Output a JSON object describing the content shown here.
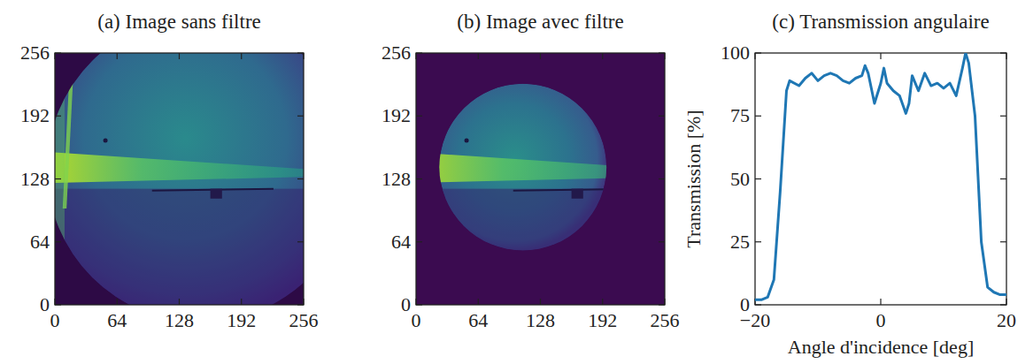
{
  "chart_data": [
    {
      "type": "image",
      "title": "(a) Image sans filtre",
      "xlim": [
        0,
        256
      ],
      "ylim": [
        0,
        256
      ],
      "xticks": [
        0,
        64,
        128,
        192,
        256
      ],
      "yticks": [
        0,
        64,
        128,
        192,
        256
      ]
    },
    {
      "type": "image",
      "title": "(b) Image avec filtre",
      "xlim": [
        0,
        256
      ],
      "ylim": [
        0,
        256
      ],
      "xticks": [
        0,
        64,
        128,
        192,
        256
      ],
      "yticks": [
        0,
        64,
        128,
        192,
        256
      ]
    },
    {
      "type": "line",
      "title": "(c) Transmission angulaire",
      "x_label": "Angle d'incidence [deg]",
      "y_label": "Transmission [%]",
      "xlim": [
        -20,
        20
      ],
      "ylim": [
        0,
        100
      ],
      "xticks": [
        {
          "value": -20,
          "label": "−20"
        },
        0,
        20
      ],
      "yticks": [
        0,
        25,
        50,
        75,
        100
      ],
      "x": [
        -20,
        -19,
        -18,
        -17,
        -16,
        -15,
        -14.5,
        -13,
        -12,
        -11,
        -10,
        -9,
        -8,
        -7,
        -6,
        -5,
        -4,
        -3,
        -2.5,
        -2,
        -1,
        0,
        0.5,
        1,
        2,
        3,
        4,
        4.5,
        5,
        6,
        7,
        8,
        9,
        10,
        11,
        12,
        13,
        13.5,
        14,
        15,
        16,
        17,
        18,
        19,
        20
      ],
      "series": [
        {
          "color": "#1f77b4",
          "values": [
            2,
            2,
            3,
            10,
            45,
            85,
            89,
            87,
            90,
            92,
            89,
            91,
            92,
            91,
            89,
            88,
            90,
            91,
            95,
            92,
            80,
            88,
            94,
            88,
            85,
            83,
            76,
            80,
            91,
            85,
            92,
            87,
            88,
            86,
            88,
            83,
            94,
            100,
            96,
            75,
            25,
            7,
            5,
            4,
            4
          ]
        }
      ]
    }
  ]
}
